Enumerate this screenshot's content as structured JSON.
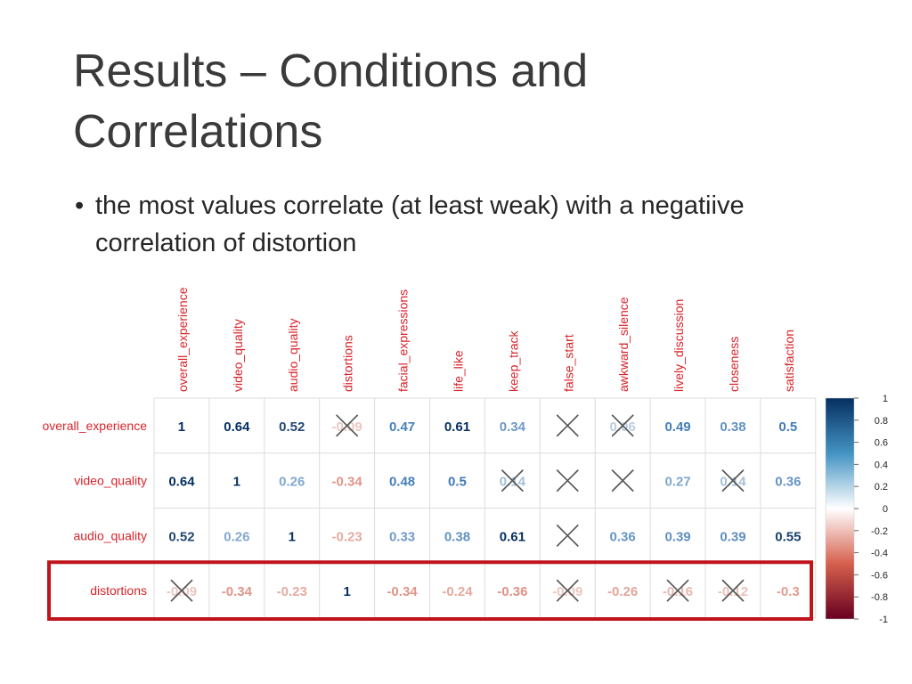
{
  "slide": {
    "title_line1": "Results – Conditions and",
    "title_line2": "Correlations",
    "bullet_symbol": "•",
    "bullet_text": "the most values correlate (at least weak) with a negatiive correlation of distortion"
  },
  "chart_data": {
    "type": "heatmap",
    "title": "",
    "columns": [
      "overall_experience",
      "video_quality",
      "audio_quality",
      "distortions",
      "facial_expressions",
      "life_like",
      "keep_track",
      "false_start",
      "awkward_silence",
      "lively_discussion",
      "closeness",
      "satisfaction"
    ],
    "rows": [
      "overall_experience",
      "video_quality",
      "audio_quality",
      "distortions"
    ],
    "cells": [
      [
        {
          "v": "1"
        },
        {
          "v": "0.64"
        },
        {
          "v": "0.52"
        },
        {
          "v": "-0.09",
          "crossed": true
        },
        {
          "v": "0.47"
        },
        {
          "v": "0.61"
        },
        {
          "v": "0.34"
        },
        {
          "v": "",
          "crossed": true
        },
        {
          "v": "0.06",
          "crossed": true
        },
        {
          "v": "0.49"
        },
        {
          "v": "0.38"
        },
        {
          "v": "0.5"
        }
      ],
      [
        {
          "v": "0.64"
        },
        {
          "v": "1"
        },
        {
          "v": "0.26"
        },
        {
          "v": "-0.34"
        },
        {
          "v": "0.48"
        },
        {
          "v": "0.5"
        },
        {
          "v": "0.14",
          "crossed": true
        },
        {
          "v": "",
          "crossed": true
        },
        {
          "v": "",
          "crossed": true
        },
        {
          "v": "0.27"
        },
        {
          "v": "0.14",
          "crossed": true
        },
        {
          "v": "0.36"
        }
      ],
      [
        {
          "v": "0.52"
        },
        {
          "v": "0.26"
        },
        {
          "v": "1"
        },
        {
          "v": "-0.23"
        },
        {
          "v": "0.33"
        },
        {
          "v": "0.38"
        },
        {
          "v": "0.61"
        },
        {
          "v": "",
          "crossed": true
        },
        {
          "v": "0.36"
        },
        {
          "v": "0.39"
        },
        {
          "v": "0.39"
        },
        {
          "v": "0.55"
        }
      ],
      [
        {
          "v": "-0.09",
          "crossed": true
        },
        {
          "v": "-0.34"
        },
        {
          "v": "-0.23"
        },
        {
          "v": "1"
        },
        {
          "v": "-0.34"
        },
        {
          "v": "-0.24"
        },
        {
          "v": "-0.36"
        },
        {
          "v": "-0.09",
          "crossed": true
        },
        {
          "v": "-0.26"
        },
        {
          "v": "-0.16",
          "crossed": true
        },
        {
          "v": "-0.12",
          "crossed": true
        },
        {
          "v": "-0.3"
        }
      ]
    ],
    "values": [
      [
        1,
        0.64,
        0.52,
        -0.09,
        0.47,
        0.61,
        0.34,
        0.0,
        0.06,
        0.49,
        0.38,
        0.5
      ],
      [
        0.64,
        1,
        0.26,
        -0.34,
        0.48,
        0.5,
        0.14,
        0.0,
        0.0,
        0.27,
        0.14,
        0.36
      ],
      [
        0.52,
        0.26,
        1,
        -0.23,
        0.33,
        0.38,
        0.61,
        0.0,
        0.36,
        0.39,
        0.39,
        0.55
      ],
      [
        -0.09,
        -0.34,
        -0.23,
        1,
        -0.34,
        -0.24,
        -0.36,
        -0.09,
        -0.26,
        -0.16,
        -0.12,
        -0.3
      ]
    ],
    "highlighted_row": "distortions",
    "highlight_color": "#c0141c",
    "colorbar": {
      "ticks": [
        "1",
        "0.8",
        "0.6",
        "0.4",
        "0.2",
        "0",
        "-0.2",
        "-0.4",
        "-0.6",
        "-0.8",
        "-1"
      ],
      "range": [
        -1,
        1
      ],
      "colors": {
        "neg": "#67001f",
        "neg_mid": "#d6604d",
        "zero": "#ffffff",
        "pos_mid": "#4393c3",
        "pos": "#053061"
      }
    },
    "label_color": "#d9232a",
    "grid": true,
    "legend_position": "right"
  }
}
